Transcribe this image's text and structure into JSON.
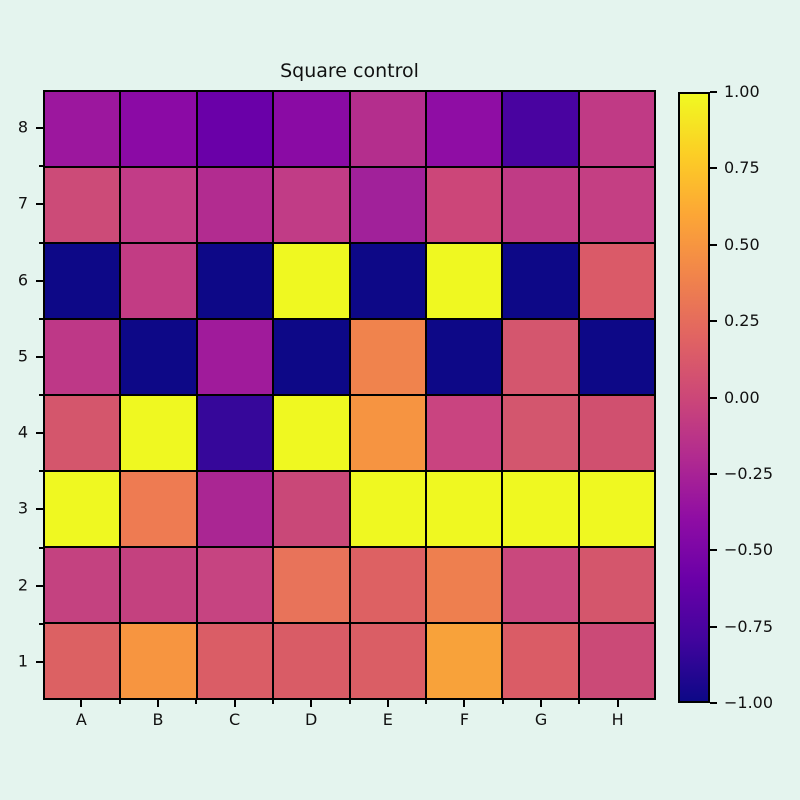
{
  "figure": {
    "background_color": "#e4f4ee"
  },
  "chart_data": {
    "type": "heatmap",
    "title": "Square control",
    "x_categories": [
      "A",
      "B",
      "C",
      "D",
      "E",
      "F",
      "G",
      "H"
    ],
    "y_categories_top_to_bottom": [
      "8",
      "7",
      "6",
      "5",
      "4",
      "3",
      "2",
      "1"
    ],
    "vmin": -1.0,
    "vmax": 1.0,
    "colormap": "plasma",
    "colormap_stops_bottom_to_top": [
      "#0d0887",
      "#41049d",
      "#6a00a8",
      "#8f0da4",
      "#b12a90",
      "#cc4778",
      "#e16462",
      "#f1844b",
      "#fca636",
      "#fcce25",
      "#f0f921"
    ],
    "colorbar_tick_labels_top_to_bottom": [
      "1.00",
      "0.75",
      "0.50",
      "0.25",
      "0.00",
      "−0.25",
      "−0.50",
      "−0.75",
      "−1.00"
    ],
    "grid_line_color": "#000000",
    "values_rows_top_to_bottom": [
      [
        -0.34,
        -0.42,
        -0.6,
        -0.42,
        -0.18,
        -0.4,
        -0.74,
        -0.11
      ],
      [
        0.0,
        -0.09,
        -0.19,
        -0.1,
        -0.3,
        -0.01,
        -0.11,
        -0.08
      ],
      [
        -1.0,
        -0.09,
        -1.0,
        1.0,
        -1.0,
        1.0,
        -1.0,
        0.15
      ],
      [
        -0.12,
        -1.0,
        -0.31,
        -1.0,
        0.4,
        -1.0,
        0.1,
        -1.0
      ],
      [
        0.11,
        1.0,
        -0.82,
        1.0,
        0.5,
        -0.04,
        0.1,
        0.06
      ],
      [
        1.0,
        0.36,
        -0.24,
        0.0,
        1.0,
        1.0,
        1.0,
        1.0
      ],
      [
        -0.07,
        -0.08,
        -0.06,
        0.31,
        0.2,
        0.38,
        -0.02,
        0.11
      ],
      [
        0.19,
        0.53,
        0.17,
        0.17,
        0.18,
        0.58,
        0.17,
        0.01
      ]
    ],
    "cell_colors_rows_top_to_bottom": [
      [
        "#9c179e",
        "#8b0aa5",
        "#6a00a8",
        "#8a0ba4",
        "#b42e8d",
        "#8f0da4",
        "#4903a0",
        "#c03a85"
      ],
      [
        "#cc4b78",
        "#c23c87",
        "#b22c90",
        "#c13c86",
        "#a1219a",
        "#cc4679",
        "#c03b85",
        "#c43f83"
      ],
      [
        "#0d0887",
        "#c23c84",
        "#0d0887",
        "#eff821",
        "#0d0887",
        "#eff821",
        "#0d0887",
        "#da5a68"
      ],
      [
        "#be3887",
        "#0d0887",
        "#a01b9b",
        "#0d0887",
        "#f0834d",
        "#0d0887",
        "#d4566e",
        "#0d0887"
      ],
      [
        "#d4566c",
        "#eff821",
        "#36079a",
        "#eff821",
        "#f69441",
        "#c94480",
        "#d3566e",
        "#d0506f"
      ],
      [
        "#eff821",
        "#ee7b52",
        "#aa2693",
        "#c94878",
        "#eff821",
        "#eff821",
        "#eff821",
        "#eff821"
      ],
      [
        "#c44280",
        "#c4417f",
        "#c64481",
        "#e8735a",
        "#dd6163",
        "#ee7f4f",
        "#c9487d",
        "#d4566c"
      ],
      [
        "#dc6163",
        "#f79540",
        "#da5d66",
        "#d95c66",
        "#da5e65",
        "#f8a23a",
        "#da5c66",
        "#cb4a77"
      ]
    ]
  }
}
